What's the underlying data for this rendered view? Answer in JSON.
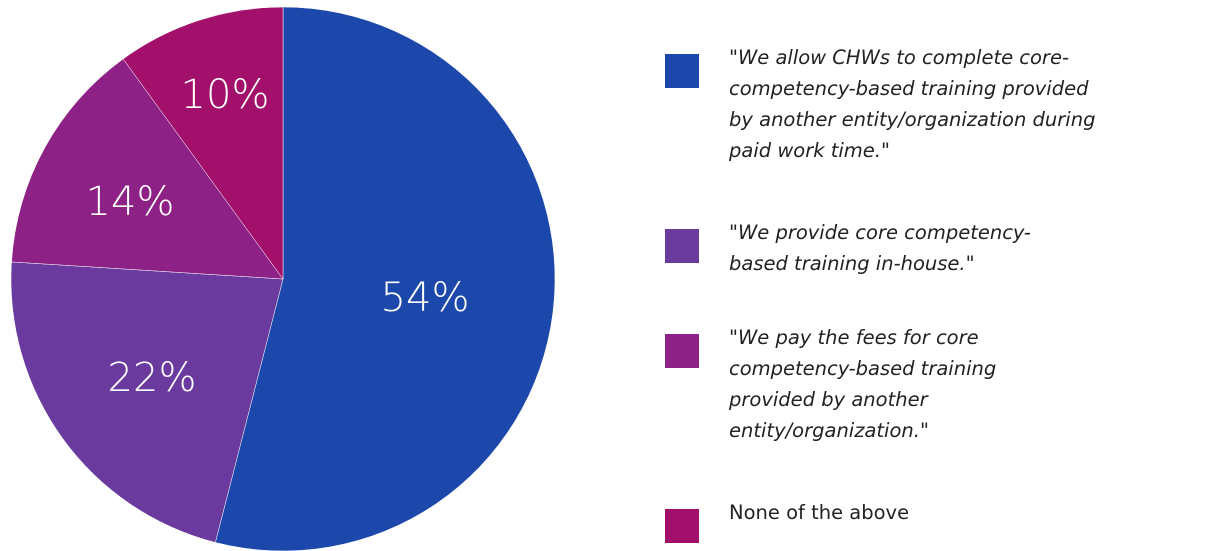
{
  "chart_data": {
    "type": "pie",
    "title": "",
    "slices": [
      {
        "label": "\"We allow CHWs to complete core-competency-based training provided by another entity/organization during paid work time.\"",
        "value": 54,
        "display": "54%",
        "color": "#1c48ab",
        "italic": true
      },
      {
        "label": "\"We provide core competency-based training in-house.\"",
        "value": 22,
        "display": "22%",
        "color": "#6a3a9f",
        "italic": true
      },
      {
        "label": "\"We pay the fees for core competency-based training provided by another entity/organization.\"",
        "value": 14,
        "display": "14%",
        "color": "#8e2186",
        "italic": true
      },
      {
        "label": "None of the above",
        "value": 10,
        "display": "10%",
        "color": "#a3106b",
        "italic": false
      }
    ],
    "legend": {
      "position": "right",
      "items": [
        {
          "lines": [
            "\"We allow CHWs to complete core-",
            "competency-based training provided",
            "by another entity/organization during",
            "paid work time.\""
          ]
        },
        {
          "lines": [
            "\"We provide core competency-",
            "based training in-house.\""
          ]
        },
        {
          "lines": [
            "\"We pay the fees for core",
            "competency-based training",
            "provided by another",
            "entity/organization.\""
          ]
        },
        {
          "lines": [
            "None of the above"
          ]
        }
      ]
    }
  }
}
